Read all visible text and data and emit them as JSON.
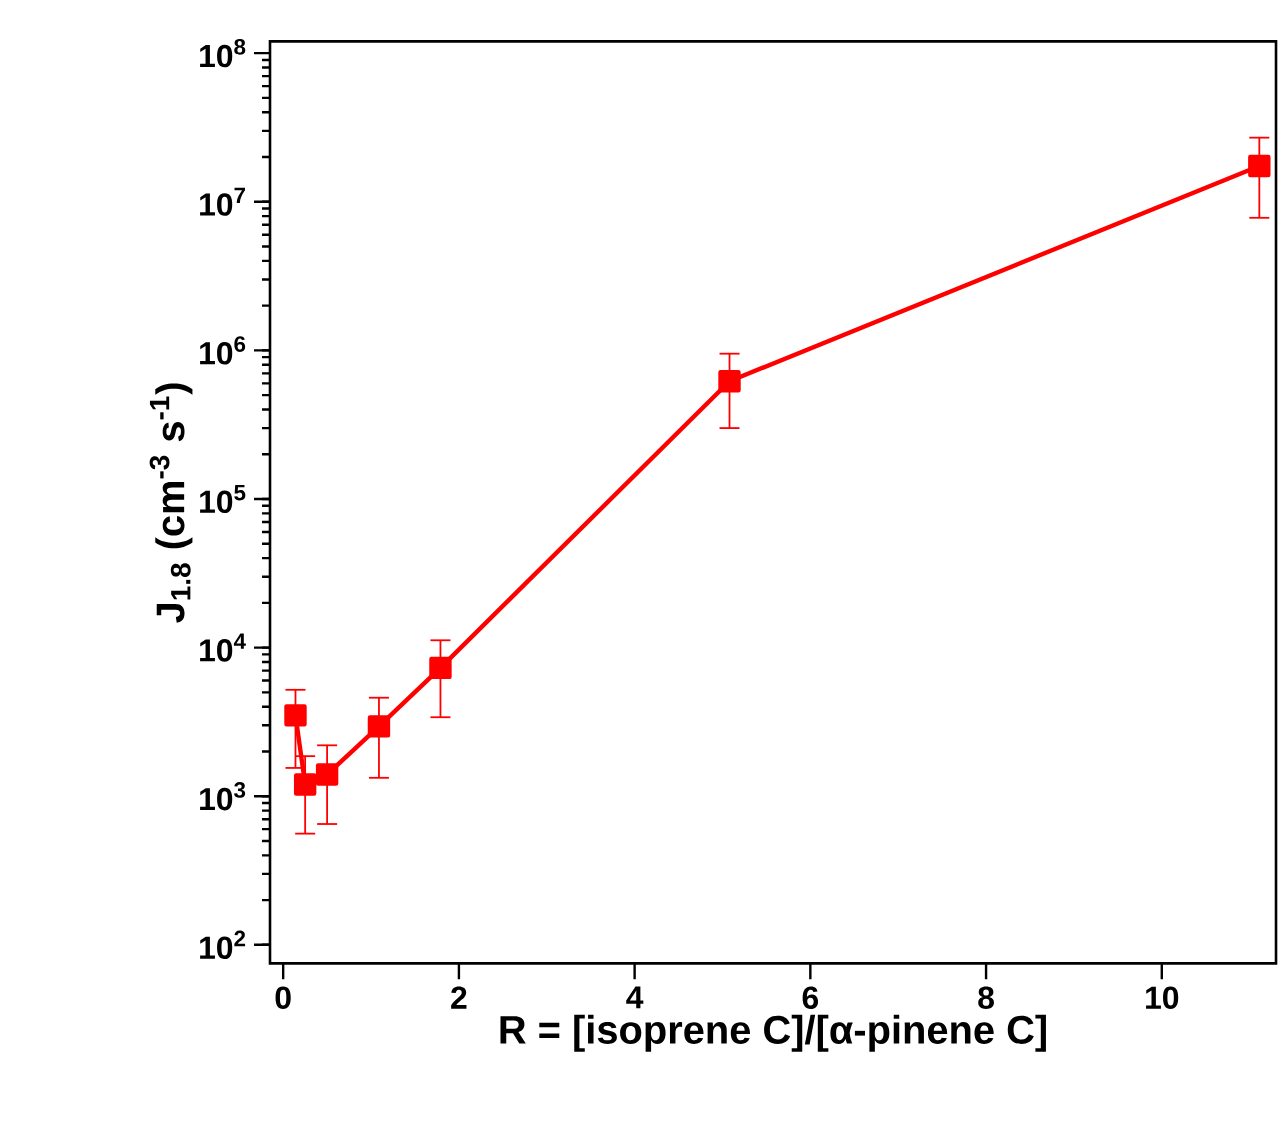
{
  "chart_data": {
    "type": "line",
    "xlabel": "R = [isoprene C]/[α-pinene C]",
    "ylabel": "J$_{1.8}$ (cm$^{-3}$ s$^{-1}$)",
    "x": [
      0.14,
      0.25,
      0.5,
      1.09,
      1.79,
      5.08,
      11.11
    ],
    "series": [
      {
        "color": "#ff0000",
        "values": [
          3500,
          1200,
          1400,
          2950,
          7300,
          620000,
          17400000
        ],
        "errors": [
          [
            1550,
            5200
          ],
          [
            560,
            1860
          ],
          [
            650,
            2200
          ],
          [
            1330,
            4600
          ],
          [
            3400,
            11200
          ],
          [
            300000,
            950000
          ],
          [
            7800000,
            27000000
          ]
        ]
      }
    ],
    "log": "y",
    "marker": "square",
    "line_style": "solid",
    "grid": false,
    "xlim": [
      -0.15,
      11.3
    ],
    "ylim": [
      75,
      120000000
    ],
    "xticks": [
      0,
      2,
      4,
      6,
      8,
      10
    ],
    "yticks": [
      {
        "value": 100,
        "label": "10$^{2}$"
      },
      {
        "value": 1000,
        "label": "10$^{3}$"
      },
      {
        "value": 10000,
        "label": "10$^{4}$"
      },
      {
        "value": 100000,
        "label": "10$^{5}$"
      },
      {
        "value": 1000000,
        "label": "10$^{6}$"
      },
      {
        "value": 10000000,
        "label": "10$^{7}$"
      },
      {
        "value": 100000000,
        "label": "10$^{8}$"
      }
    ]
  }
}
